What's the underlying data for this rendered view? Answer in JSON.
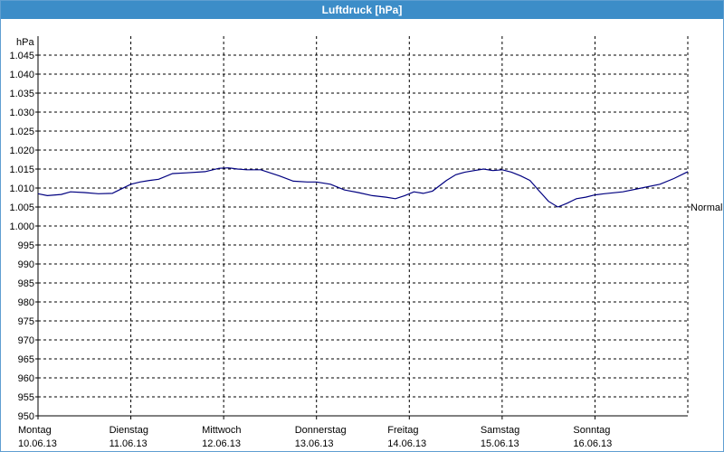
{
  "window": {
    "title": "Luftdruck [hPa]"
  },
  "chart_data": {
    "type": "line",
    "title": "Luftdruck [hPa]",
    "ylabel": "hPa",
    "ylim": [
      950,
      1050
    ],
    "xlim": [
      0,
      7
    ],
    "grid": true,
    "y_ticks": [
      "950",
      "955",
      "960",
      "965",
      "970",
      "975",
      "980",
      "985",
      "990",
      "995",
      "1.000",
      "1.005",
      "1.010",
      "1.015",
      "1.020",
      "1.025",
      "1.030",
      "1.035",
      "1.040",
      "1.045"
    ],
    "day_labels": [
      {
        "day": "Montag",
        "date": "10.06.13"
      },
      {
        "day": "Dienstag",
        "date": "11.06.13"
      },
      {
        "day": "Mittwoch",
        "date": "12.06.13"
      },
      {
        "day": "Donnerstag",
        "date": "13.06.13"
      },
      {
        "day": "Freitag",
        "date": "14.06.13"
      },
      {
        "day": "Samstag",
        "date": "15.06.13"
      },
      {
        "day": "Sonntag",
        "date": "16.06.13"
      }
    ],
    "reference_line": {
      "label": "Normal",
      "value": 1005
    },
    "series": [
      {
        "color": "#000080",
        "x": [
          0,
          0.1,
          0.25,
          0.35,
          0.5,
          0.65,
          0.8,
          1.0,
          1.1,
          1.2,
          1.3,
          1.45,
          1.6,
          1.8,
          1.95,
          2.05,
          2.15,
          2.25,
          2.4,
          2.6,
          2.75,
          2.9,
          3.0,
          3.15,
          3.3,
          3.45,
          3.6,
          3.75,
          3.85,
          3.95,
          4.05,
          4.15,
          4.25,
          4.4,
          4.5,
          4.6,
          4.7,
          4.8,
          4.9,
          5.0,
          5.1,
          5.2,
          5.3,
          5.4,
          5.5,
          5.6,
          5.7,
          5.8,
          5.9,
          6.0,
          6.1,
          6.3,
          6.5,
          6.7,
          6.85,
          7.0
        ],
        "values": [
          1008.5,
          1008.0,
          1008.3,
          1009.0,
          1008.8,
          1008.5,
          1008.6,
          1011.0,
          1011.6,
          1012.0,
          1012.3,
          1013.8,
          1014.0,
          1014.3,
          1015.2,
          1015.3,
          1015.0,
          1014.8,
          1014.8,
          1013.2,
          1011.8,
          1011.6,
          1011.6,
          1011.0,
          1009.5,
          1008.8,
          1008.0,
          1007.6,
          1007.2,
          1008.0,
          1009.0,
          1008.6,
          1009.2,
          1012.0,
          1013.5,
          1014.2,
          1014.6,
          1015.0,
          1014.6,
          1014.8,
          1014.2,
          1013.2,
          1012.0,
          1009.2,
          1006.5,
          1005.0,
          1006.0,
          1007.2,
          1007.6,
          1008.2,
          1008.5,
          1009.0,
          1010.0,
          1011.0,
          1012.5,
          1014.3
        ]
      }
    ]
  }
}
